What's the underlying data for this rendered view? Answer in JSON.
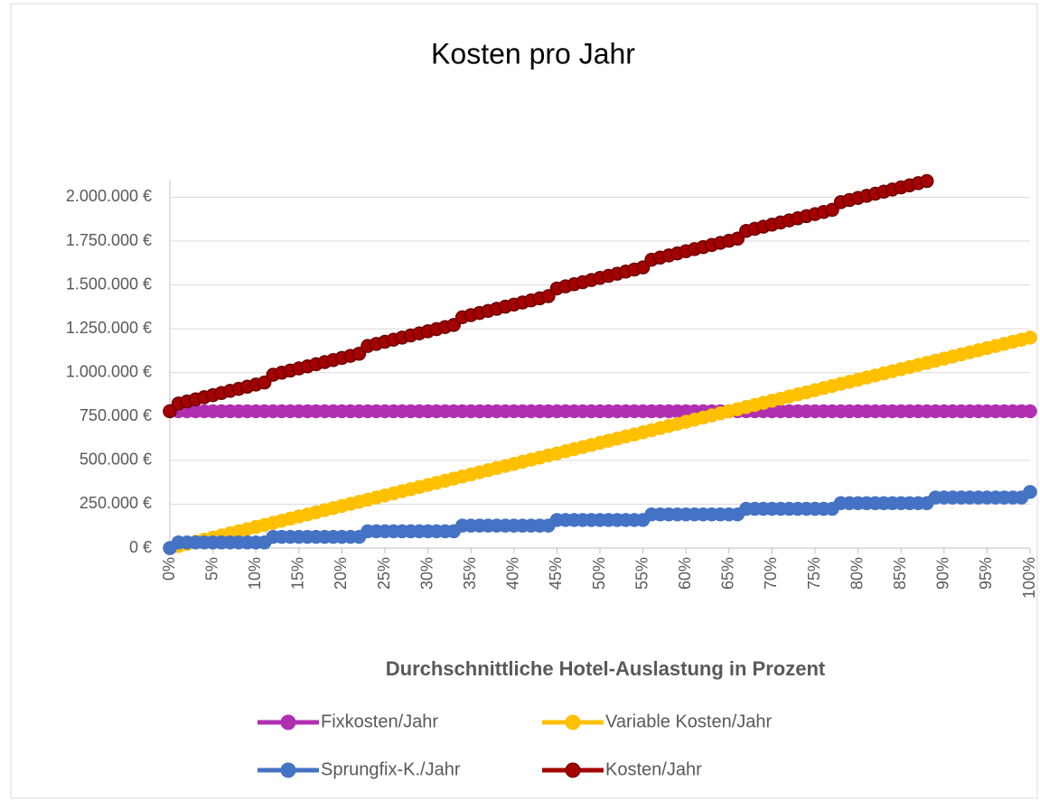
{
  "chart_data": {
    "type": "line",
    "title": "Kosten pro Jahr",
    "x_label": "Durchschnittliche Hotel-Auslastung in Prozent",
    "x": [
      0,
      1,
      2,
      3,
      4,
      5,
      6,
      7,
      8,
      9,
      10,
      11,
      12,
      13,
      14,
      15,
      16,
      17,
      18,
      19,
      20,
      21,
      22,
      23,
      24,
      25,
      26,
      27,
      28,
      29,
      30,
      31,
      32,
      33,
      34,
      35,
      36,
      37,
      38,
      39,
      40,
      41,
      42,
      43,
      44,
      45,
      46,
      47,
      48,
      49,
      50,
      51,
      52,
      53,
      54,
      55,
      56,
      57,
      58,
      59,
      60,
      61,
      62,
      63,
      64,
      65,
      66,
      67,
      68,
      69,
      70,
      71,
      72,
      73,
      74,
      75,
      76,
      77,
      78,
      79,
      80,
      81,
      82,
      83,
      84,
      85,
      86,
      87,
      88,
      89,
      90,
      91,
      92,
      93,
      94,
      95,
      96,
      97,
      98,
      99,
      100
    ],
    "xlim": [
      0,
      100
    ],
    "xticks": [
      {
        "value": 0,
        "label": "0%"
      },
      {
        "value": 5,
        "label": "5%"
      },
      {
        "value": 10,
        "label": "10%"
      },
      {
        "value": 15,
        "label": "15%"
      },
      {
        "value": 20,
        "label": "20%"
      },
      {
        "value": 25,
        "label": "25%"
      },
      {
        "value": 30,
        "label": "30%"
      },
      {
        "value": 35,
        "label": "35%"
      },
      {
        "value": 40,
        "label": "40%"
      },
      {
        "value": 45,
        "label": "45%"
      },
      {
        "value": 50,
        "label": "50%"
      },
      {
        "value": 55,
        "label": "55%"
      },
      {
        "value": 60,
        "label": "60%"
      },
      {
        "value": 65,
        "label": "65%"
      },
      {
        "value": 70,
        "label": "70%"
      },
      {
        "value": 75,
        "label": "75%"
      },
      {
        "value": 80,
        "label": "80%"
      },
      {
        "value": 85,
        "label": "85%"
      },
      {
        "value": 90,
        "label": "90%"
      },
      {
        "value": 95,
        "label": "95%"
      },
      {
        "value": 100,
        "label": "100%"
      }
    ],
    "ylim": [
      0,
      2100000
    ],
    "yticks": [
      {
        "value": 0,
        "label": "0 €"
      },
      {
        "value": 250000,
        "label": "250.000 €"
      },
      {
        "value": 500000,
        "label": "500.000 €"
      },
      {
        "value": 750000,
        "label": "750.000 €"
      },
      {
        "value": 1000000,
        "label": "1.000.000 €"
      },
      {
        "value": 1250000,
        "label": "1.250.000 €"
      },
      {
        "value": 1500000,
        "label": "1.500.000 €"
      },
      {
        "value": 1750000,
        "label": "1.750.000 €"
      },
      {
        "value": 2000000,
        "label": "2.000.000 €"
      }
    ],
    "grid": true,
    "legend": "bottom",
    "series": [
      {
        "name": "Fixkosten/Jahr",
        "color": "#b02fb0",
        "values": [
          780000,
          780000,
          780000,
          780000,
          780000,
          780000,
          780000,
          780000,
          780000,
          780000,
          780000,
          780000,
          780000,
          780000,
          780000,
          780000,
          780000,
          780000,
          780000,
          780000,
          780000,
          780000,
          780000,
          780000,
          780000,
          780000,
          780000,
          780000,
          780000,
          780000,
          780000,
          780000,
          780000,
          780000,
          780000,
          780000,
          780000,
          780000,
          780000,
          780000,
          780000,
          780000,
          780000,
          780000,
          780000,
          780000,
          780000,
          780000,
          780000,
          780000,
          780000,
          780000,
          780000,
          780000,
          780000,
          780000,
          780000,
          780000,
          780000,
          780000,
          780000,
          780000,
          780000,
          780000,
          780000,
          780000,
          780000,
          780000,
          780000,
          780000,
          780000,
          780000,
          780000,
          780000,
          780000,
          780000,
          780000,
          780000,
          780000,
          780000,
          780000,
          780000,
          780000,
          780000,
          780000,
          780000,
          780000,
          780000,
          780000,
          780000,
          780000,
          780000,
          780000,
          780000,
          780000,
          780000,
          780000,
          780000,
          780000,
          780000,
          780000
        ]
      },
      {
        "name": "Variable Kosten/Jahr",
        "color": "#ffc000",
        "values": [
          0,
          12000,
          24000,
          36000,
          48000,
          60000,
          72000,
          84000,
          96000,
          108000,
          120000,
          132000,
          144000,
          156000,
          168000,
          180000,
          192000,
          204000,
          216000,
          228000,
          240000,
          252000,
          264000,
          276000,
          288000,
          300000,
          312000,
          324000,
          336000,
          348000,
          360000,
          372000,
          384000,
          396000,
          408000,
          420000,
          432000,
          444000,
          456000,
          468000,
          480000,
          492000,
          504000,
          516000,
          528000,
          540000,
          552000,
          564000,
          576000,
          588000,
          600000,
          612000,
          624000,
          636000,
          648000,
          660000,
          672000,
          684000,
          696000,
          708000,
          720000,
          732000,
          744000,
          756000,
          768000,
          780000,
          792000,
          804000,
          816000,
          828000,
          840000,
          852000,
          864000,
          876000,
          888000,
          900000,
          912000,
          924000,
          936000,
          948000,
          960000,
          972000,
          984000,
          996000,
          1008000,
          1020000,
          1032000,
          1044000,
          1056000,
          1068000,
          1080000,
          1092000,
          1104000,
          1116000,
          1128000,
          1140000,
          1152000,
          1164000,
          1176000,
          1188000,
          1200000
        ]
      },
      {
        "name": "Sprungfix-K./Jahr",
        "color": "#4472c4",
        "values": [
          0,
          32000,
          32000,
          32000,
          32000,
          32000,
          32000,
          32000,
          32000,
          32000,
          32000,
          32000,
          64000,
          64000,
          64000,
          64000,
          64000,
          64000,
          64000,
          64000,
          64000,
          64000,
          64000,
          96000,
          96000,
          96000,
          96000,
          96000,
          96000,
          96000,
          96000,
          96000,
          96000,
          96000,
          128000,
          128000,
          128000,
          128000,
          128000,
          128000,
          128000,
          128000,
          128000,
          128000,
          128000,
          160000,
          160000,
          160000,
          160000,
          160000,
          160000,
          160000,
          160000,
          160000,
          160000,
          160000,
          192000,
          192000,
          192000,
          192000,
          192000,
          192000,
          192000,
          192000,
          192000,
          192000,
          192000,
          224000,
          224000,
          224000,
          224000,
          224000,
          224000,
          224000,
          224000,
          224000,
          224000,
          224000,
          256000,
          256000,
          256000,
          256000,
          256000,
          256000,
          256000,
          256000,
          256000,
          256000,
          256000,
          288000,
          288000,
          288000,
          288000,
          288000,
          288000,
          288000,
          288000,
          288000,
          288000,
          288000,
          320000
        ]
      },
      {
        "name": "Kosten/Jahr",
        "color": "#a50000",
        "values": [
          780000,
          824000,
          836000,
          848000,
          860000,
          872000,
          884000,
          896000,
          908000,
          920000,
          932000,
          944000,
          988000,
          1000000,
          1012000,
          1024000,
          1036000,
          1048000,
          1060000,
          1072000,
          1084000,
          1096000,
          1108000,
          1152000,
          1164000,
          1176000,
          1188000,
          1200000,
          1212000,
          1224000,
          1236000,
          1248000,
          1260000,
          1272000,
          1316000,
          1328000,
          1340000,
          1352000,
          1364000,
          1376000,
          1388000,
          1400000,
          1412000,
          1424000,
          1436000,
          1480000,
          1492000,
          1504000,
          1516000,
          1528000,
          1540000,
          1552000,
          1564000,
          1576000,
          1588000,
          1600000,
          1644000,
          1656000,
          1668000,
          1680000,
          1692000,
          1704000,
          1716000,
          1728000,
          1740000,
          1752000,
          1764000,
          1808000,
          1820000,
          1832000,
          1844000,
          1856000,
          1868000,
          1880000,
          1892000,
          1904000,
          1916000,
          1928000,
          1972000,
          1984000,
          1996000,
          2008000,
          2020000,
          2032000,
          2044000,
          2056000,
          2068000,
          2080000,
          2092000,
          null,
          null,
          null,
          null,
          null,
          null,
          null,
          null,
          null,
          null,
          null,
          null
        ]
      }
    ]
  }
}
